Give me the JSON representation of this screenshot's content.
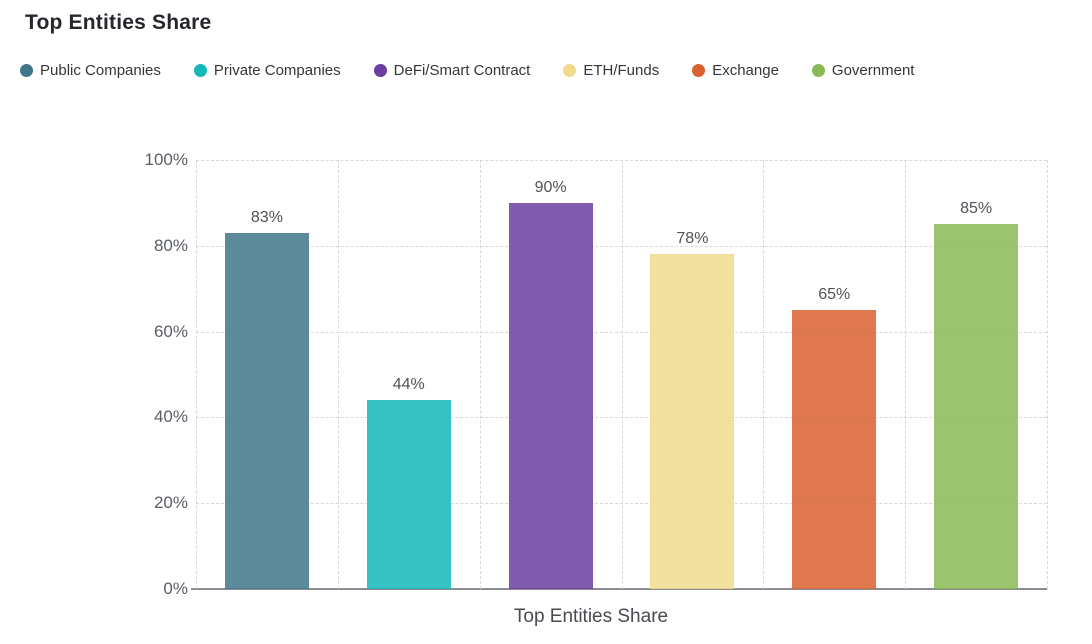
{
  "page": {
    "title": "Top Entities Share",
    "background_color": "#ffffff"
  },
  "chart_data": {
    "type": "bar",
    "title": "Top Entities Share",
    "xlabel": "Top Entities Share",
    "ylabel": "",
    "categories": [
      "Public Companies",
      "Private Companies",
      "DeFi/Smart Contract",
      "ETH/Funds",
      "Exchange",
      "Government"
    ],
    "values": [
      83,
      44,
      90,
      78,
      65,
      85
    ],
    "value_labels": [
      "83%",
      "44%",
      "90%",
      "78%",
      "65%",
      "85%"
    ],
    "ylim": [
      0,
      100
    ],
    "ytick_step": 20,
    "ytick_labels": [
      "0%",
      "20%",
      "40%",
      "60%",
      "80%",
      "100%"
    ],
    "grid": "dashed-both-axes",
    "legend_position": "top-left",
    "legend": [
      {
        "label": "Public Companies",
        "color": "#41758a"
      },
      {
        "label": "Private Companies",
        "color": "#14b8ba"
      },
      {
        "label": "DeFi/Smart Contract",
        "color": "#6b3fa0"
      },
      {
        "label": "ETH/Funds",
        "color": "#f0db8d"
      },
      {
        "label": "Exchange",
        "color": "#d9602f"
      },
      {
        "label": "Government",
        "color": "#8aba55"
      }
    ],
    "style": {
      "bar_fill_opacity": 0.85,
      "gridline_color": "#d9d9dc",
      "axis_line_color": "#8c8c94",
      "tick_label_color": "#5a5e66",
      "value_label_color": "#515258",
      "title_color": "#26272c"
    }
  }
}
